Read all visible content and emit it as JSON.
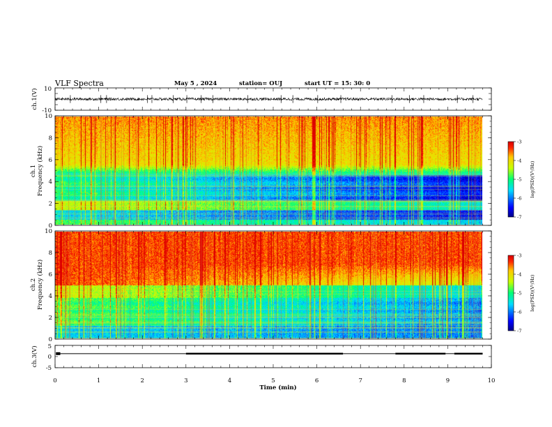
{
  "header": {
    "title": "VLF Spectra",
    "date": "May 5  , 2024",
    "station": "station= OUJ",
    "start": "start  UT  =   15: 30: 0"
  },
  "chart_data": [
    {
      "type": "line",
      "panel": "waveform",
      "ylabel": "ch.1(V)",
      "ylim": [
        -10,
        10
      ],
      "yticks": [
        "10",
        "-10"
      ],
      "xlim": [
        0,
        10
      ],
      "baseline": 0,
      "noise_amplitude": 1.2,
      "spikes": [
        0.35,
        1.05,
        1.18,
        2.12,
        2.22,
        2.71,
        3.02,
        3.35,
        3.62,
        4.42,
        5.18,
        5.45,
        6.02,
        6.55,
        7.72,
        8.12,
        8.45,
        9.22,
        9.58
      ]
    },
    {
      "type": "heatmap",
      "panel": "spectrogram-ch1",
      "ylabel_line1": "ch.1",
      "ylabel_line2": "Frequency (kHz)",
      "ylim": [
        0,
        10
      ],
      "yticks": [
        "0",
        "2",
        "4",
        "6",
        "8",
        "10"
      ],
      "xlim": [
        0,
        9.8
      ],
      "colorbar_label": "log(PSD)(V²/Hz)",
      "colorbar_ticks": [
        "-3",
        "-4",
        "-5",
        "-6",
        "-7"
      ],
      "colorbar_range": [
        -7,
        -3
      ]
    },
    {
      "type": "heatmap",
      "panel": "spectrogram-ch2",
      "ylabel_line1": "ch.2",
      "ylabel_line2": "Frequency (kHz)",
      "ylim": [
        0,
        10
      ],
      "yticks": [
        "0",
        "2",
        "4",
        "6",
        "8",
        "10"
      ],
      "xlim": [
        0,
        9.8
      ],
      "colorbar_label": "log(PSD)(V²/Hz)",
      "colorbar_ticks": [
        "-3",
        "-4",
        "-5",
        "-6",
        "-7"
      ],
      "colorbar_range": [
        -7,
        -3
      ]
    },
    {
      "type": "line",
      "panel": "ch3",
      "ylabel": "ch.3(V)",
      "ylim": [
        -5,
        5
      ],
      "yticks": [
        "5",
        "0",
        "-5"
      ],
      "xlim": [
        0,
        10
      ],
      "segments": [
        [
          0.02,
          0.12,
          2
        ],
        [
          0.12,
          3.0,
          0
        ],
        [
          3.0,
          6.6,
          1
        ],
        [
          6.6,
          7.8,
          0
        ],
        [
          7.8,
          8.95,
          1
        ],
        [
          8.95,
          9.15,
          0
        ],
        [
          9.15,
          9.8,
          1
        ]
      ]
    }
  ],
  "xaxis": {
    "label": "Time  (min)",
    "ticks": [
      "0",
      "1",
      "2",
      "3",
      "4",
      "5",
      "6",
      "7",
      "8",
      "9",
      "10"
    ],
    "range": [
      0,
      10
    ]
  }
}
